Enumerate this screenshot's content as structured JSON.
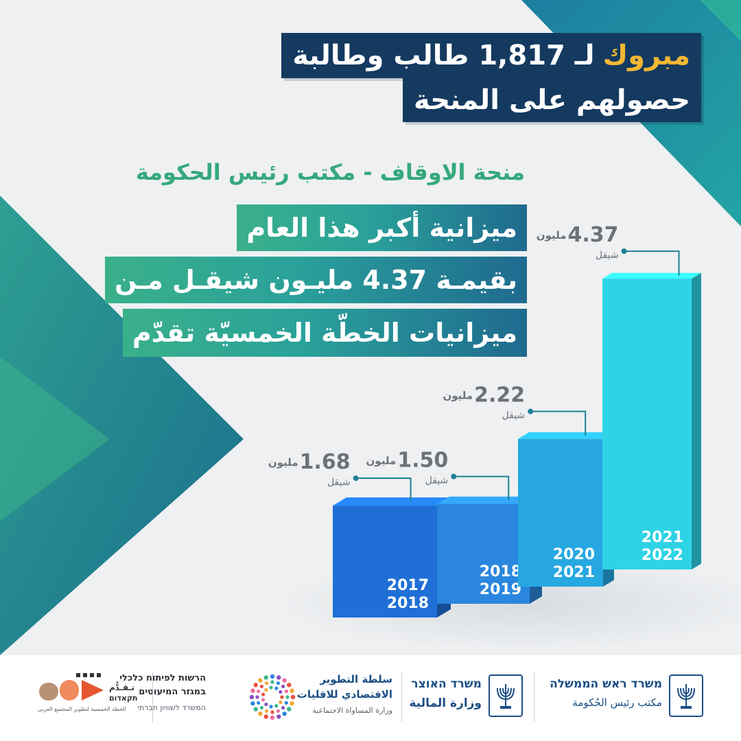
{
  "header": {
    "line1_highlight": "مبروك",
    "line1_rest": "لـ 1,817 طالب وطالبة",
    "line2": "حصولهم على المنحة"
  },
  "subtitle": "منحة الاوقاف - مكتب رئيس الحكومة",
  "headline": {
    "line1": "ميزانية أكبر هذا العام",
    "line2": "بقيمـة 4.37 مليـون شيقـل مـن",
    "line3": "ميزانيات الخطّة الخمسيّة تقدّم"
  },
  "chart_data": {
    "type": "bar",
    "categories": [
      "2017 2018",
      "2018 2019",
      "2020 2021",
      "2021 2022"
    ],
    "category_lines": [
      [
        "2017",
        "2018"
      ],
      [
        "2018",
        "2019"
      ],
      [
        "2020",
        "2021"
      ],
      [
        "2021",
        "2022"
      ]
    ],
    "values": [
      1.68,
      1.5,
      2.22,
      4.37
    ],
    "value_labels": [
      "1.68",
      "1.50",
      "2.22",
      "4.37"
    ],
    "unit_line1": "مليون",
    "unit_line2": "شيقل",
    "colors": [
      "#1f6fd6",
      "#2a86de",
      "#27a8e0",
      "#2ed3e6"
    ]
  },
  "footer": {
    "pmo": {
      "line1": "משרד ראש הממשלה",
      "line2": "مكتب رئيس الحُكومة"
    },
    "treasury": {
      "line1": "משרד האוצר",
      "line2": "وزارة المالية"
    },
    "authority": {
      "line1": "سلطة التطوير",
      "line2": "الاقتصادي للاقليات",
      "line3": "وزارة المساواة الاجتماعية"
    },
    "minorities": {
      "line1": "הרשות לפיתוח כלכלי",
      "line2": "במגזר המיעוטים",
      "line3": "המשרד לשוויון חברתי"
    },
    "takadum": {
      "line1": "تـقـدُّم",
      "line2": "תקאדום",
      "line3": "الخطة الخمسية لتطوير المجتمع العربي"
    }
  },
  "colors": {
    "navy": "#143a60",
    "gold": "#f3b733",
    "green": "#35a87c",
    "teal": "#1f7f95"
  }
}
